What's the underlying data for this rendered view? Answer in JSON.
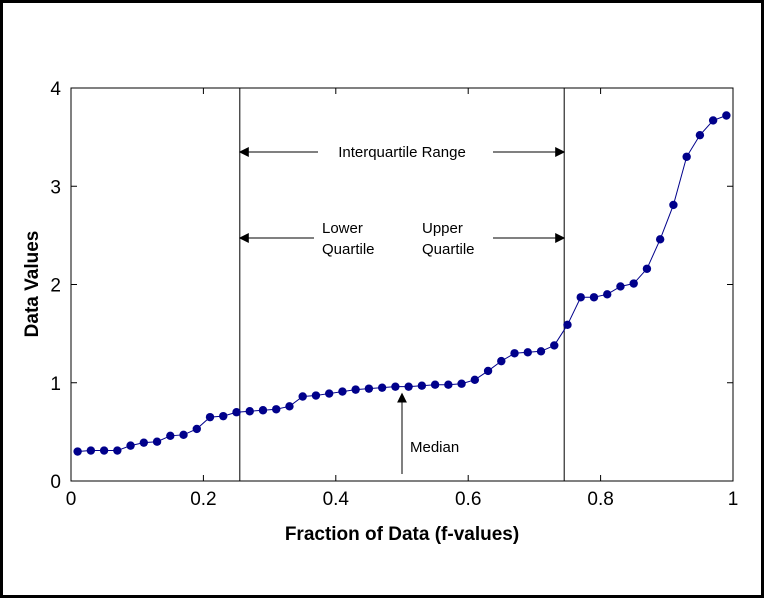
{
  "chart_data": {
    "type": "line",
    "title": "",
    "xlabel": "Fraction of Data (f-values)",
    "ylabel": "Data Values",
    "xlim": [
      0,
      1
    ],
    "ylim": [
      0,
      4
    ],
    "xticks": [
      "0",
      "0.2",
      "0.4",
      "0.6",
      "0.8",
      "1"
    ],
    "xtick_values": [
      0,
      0.2,
      0.4,
      0.6,
      0.8,
      1
    ],
    "yticks": [
      "0",
      "1",
      "2",
      "3",
      "4"
    ],
    "ytick_values": [
      0,
      1,
      2,
      3,
      4
    ],
    "grid": false,
    "marker_color": "#00008B",
    "line_color": "#00008B",
    "series": [
      {
        "x": [
          0.01,
          0.03,
          0.05,
          0.07,
          0.09,
          0.11,
          0.13,
          0.15,
          0.17,
          0.19,
          0.21,
          0.23,
          0.25,
          0.27,
          0.29,
          0.31,
          0.33,
          0.35,
          0.37,
          0.39,
          0.41,
          0.43,
          0.45,
          0.47,
          0.49,
          0.51,
          0.53,
          0.55,
          0.57,
          0.59,
          0.61,
          0.63,
          0.65,
          0.67,
          0.69,
          0.71,
          0.73,
          0.75,
          0.77,
          0.79,
          0.81,
          0.83,
          0.85,
          0.87,
          0.89,
          0.91,
          0.93,
          0.95,
          0.97,
          0.99
        ],
        "values": [
          0.3,
          0.31,
          0.31,
          0.31,
          0.36,
          0.39,
          0.4,
          0.46,
          0.47,
          0.53,
          0.65,
          0.66,
          0.7,
          0.71,
          0.72,
          0.73,
          0.76,
          0.86,
          0.87,
          0.89,
          0.91,
          0.93,
          0.94,
          0.95,
          0.96,
          0.96,
          0.97,
          0.98,
          0.98,
          0.99,
          1.03,
          1.12,
          1.22,
          1.3,
          1.31,
          1.32,
          1.38,
          1.59,
          1.87,
          1.87,
          1.9,
          1.98,
          2.01,
          2.16,
          2.46,
          2.81,
          3.3,
          3.52,
          3.67,
          3.72
        ]
      }
    ],
    "annotations": {
      "lower_quartile_x": 0.255,
      "upper_quartile_x": 0.745,
      "median_x": 0.5,
      "interquartile_label": "Interquartile Range",
      "lower_quartile_label": [
        "Lower",
        "Quartile"
      ],
      "upper_quartile_label": [
        "Upper",
        "Quartile"
      ],
      "median_label": "Median"
    }
  }
}
